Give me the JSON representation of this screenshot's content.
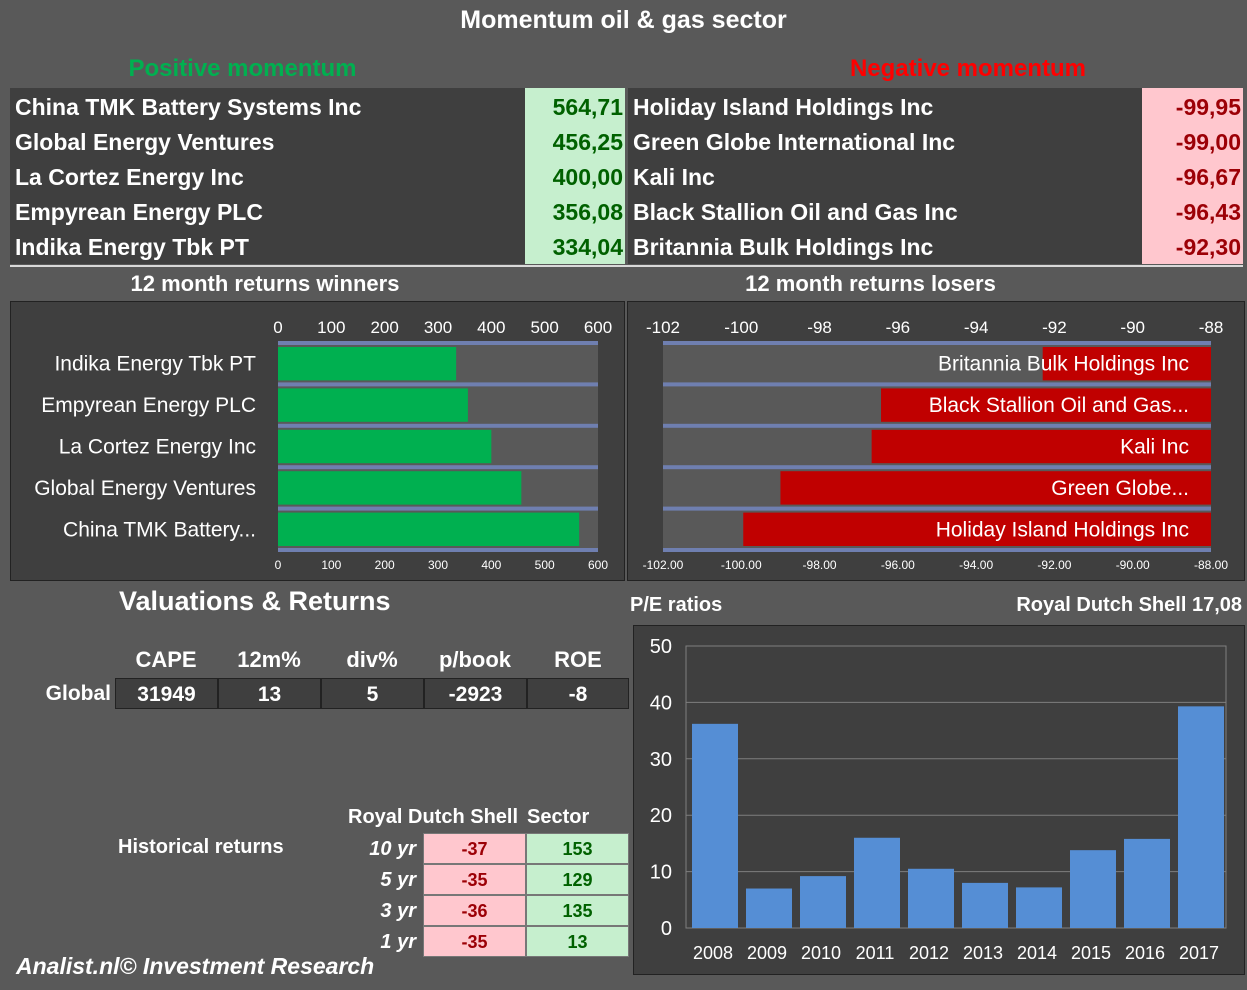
{
  "title": "Momentum oil & gas sector",
  "positive": {
    "heading": "Positive momentum",
    "rows": [
      {
        "name": "China TMK Battery Systems Inc",
        "value": "564,71"
      },
      {
        "name": "Global Energy Ventures",
        "value": "456,25"
      },
      {
        "name": "La Cortez Energy Inc",
        "value": "400,00"
      },
      {
        "name": "Empyrean Energy PLC",
        "value": "356,08"
      },
      {
        "name": "Indika Energy Tbk PT",
        "value": "334,04"
      }
    ]
  },
  "negative": {
    "heading": "Negative momentum",
    "rows": [
      {
        "name": "Holiday Island Holdings Inc",
        "value": "-99,95"
      },
      {
        "name": "Green Globe International Inc",
        "value": "-99,00"
      },
      {
        "name": "Kali Inc",
        "value": "-96,67"
      },
      {
        "name": "Black Stallion Oil and Gas Inc",
        "value": "-96,43"
      },
      {
        "name": "Britannia Bulk Holdings Inc",
        "value": "-92,30"
      }
    ]
  },
  "valuations": {
    "title": "Valuations & Returns",
    "headers": [
      "CAPE",
      "12m%",
      "div%",
      "p/book",
      "ROE"
    ],
    "row_label": "Global",
    "values": [
      "31949",
      "13",
      "5",
      "-2923",
      "-8"
    ]
  },
  "historical": {
    "label": "Historical returns",
    "col1": "Royal Dutch Shell",
    "col2": "Sector",
    "rows": [
      {
        "period": "10 yr",
        "company": "-37",
        "sector": "153"
      },
      {
        "period": "5 yr",
        "company": "-35",
        "sector": "129"
      },
      {
        "period": "3 yr",
        "company": "-36",
        "sector": "135"
      },
      {
        "period": "1 yr",
        "company": "-35",
        "sector": "13"
      }
    ]
  },
  "footer": "Analist.nl© Investment Research",
  "pe_header": {
    "left": "P/E ratios",
    "right": "Royal Dutch Shell 17,08"
  },
  "colors": {
    "background": "#595959",
    "panel": "#3f3f3f",
    "positive_text": "#00b050",
    "negative_text": "#ff0000",
    "winner_bar": "#00b050",
    "loser_bar": "#c00000",
    "pe_bar": "#558ed5",
    "green_cell": "#c6efce",
    "red_cell": "#ffc7ce"
  },
  "chart_data": [
    {
      "type": "bar",
      "orientation": "horizontal",
      "title": "12 month returns winners",
      "categories": [
        "Indika Energy Tbk PT",
        "Empyrean Energy PLC",
        "La Cortez Energy Inc",
        "Global Energy Ventures",
        "China TMK Battery..."
      ],
      "values": [
        334.04,
        356.08,
        400.0,
        456.25,
        564.71
      ],
      "xlim": [
        0,
        600
      ],
      "ticks_top": [
        "0",
        "100",
        "200",
        "300",
        "400",
        "500",
        "600"
      ],
      "ticks_bottom": [
        "0",
        "100",
        "200",
        "300",
        "400",
        "500",
        "600"
      ]
    },
    {
      "type": "bar",
      "orientation": "horizontal",
      "title": "12 month returns losers",
      "categories": [
        "Britannia Bulk Holdings Inc",
        "Black Stallion Oil and Gas...",
        "Kali Inc",
        "Green Globe...",
        "Holiday Island Holdings Inc"
      ],
      "values": [
        -92.3,
        -96.43,
        -96.67,
        -99.0,
        -99.95
      ],
      "xlim": [
        -102,
        -88
      ],
      "ticks_top": [
        "-102",
        "-100",
        "-98",
        "-96",
        "-94",
        "-92",
        "-90",
        "-88"
      ],
      "ticks_bottom": [
        "-102.00",
        "-100.00",
        "-98.00",
        "-96.00",
        "-94.00",
        "-92.00",
        "-90.00",
        "-88.00"
      ]
    },
    {
      "type": "bar",
      "title": "P/E ratios",
      "categories": [
        "2008",
        "2009",
        "2010",
        "2011",
        "2012",
        "2013",
        "2014",
        "2015",
        "2016",
        "2017"
      ],
      "values": [
        36.2,
        7.0,
        9.2,
        16.0,
        10.5,
        8.0,
        7.2,
        13.8,
        15.8,
        39.3
      ],
      "ylim": [
        0,
        50
      ],
      "yticks": [
        "0",
        "10",
        "20",
        "30",
        "40",
        "50"
      ],
      "grid": true
    }
  ]
}
